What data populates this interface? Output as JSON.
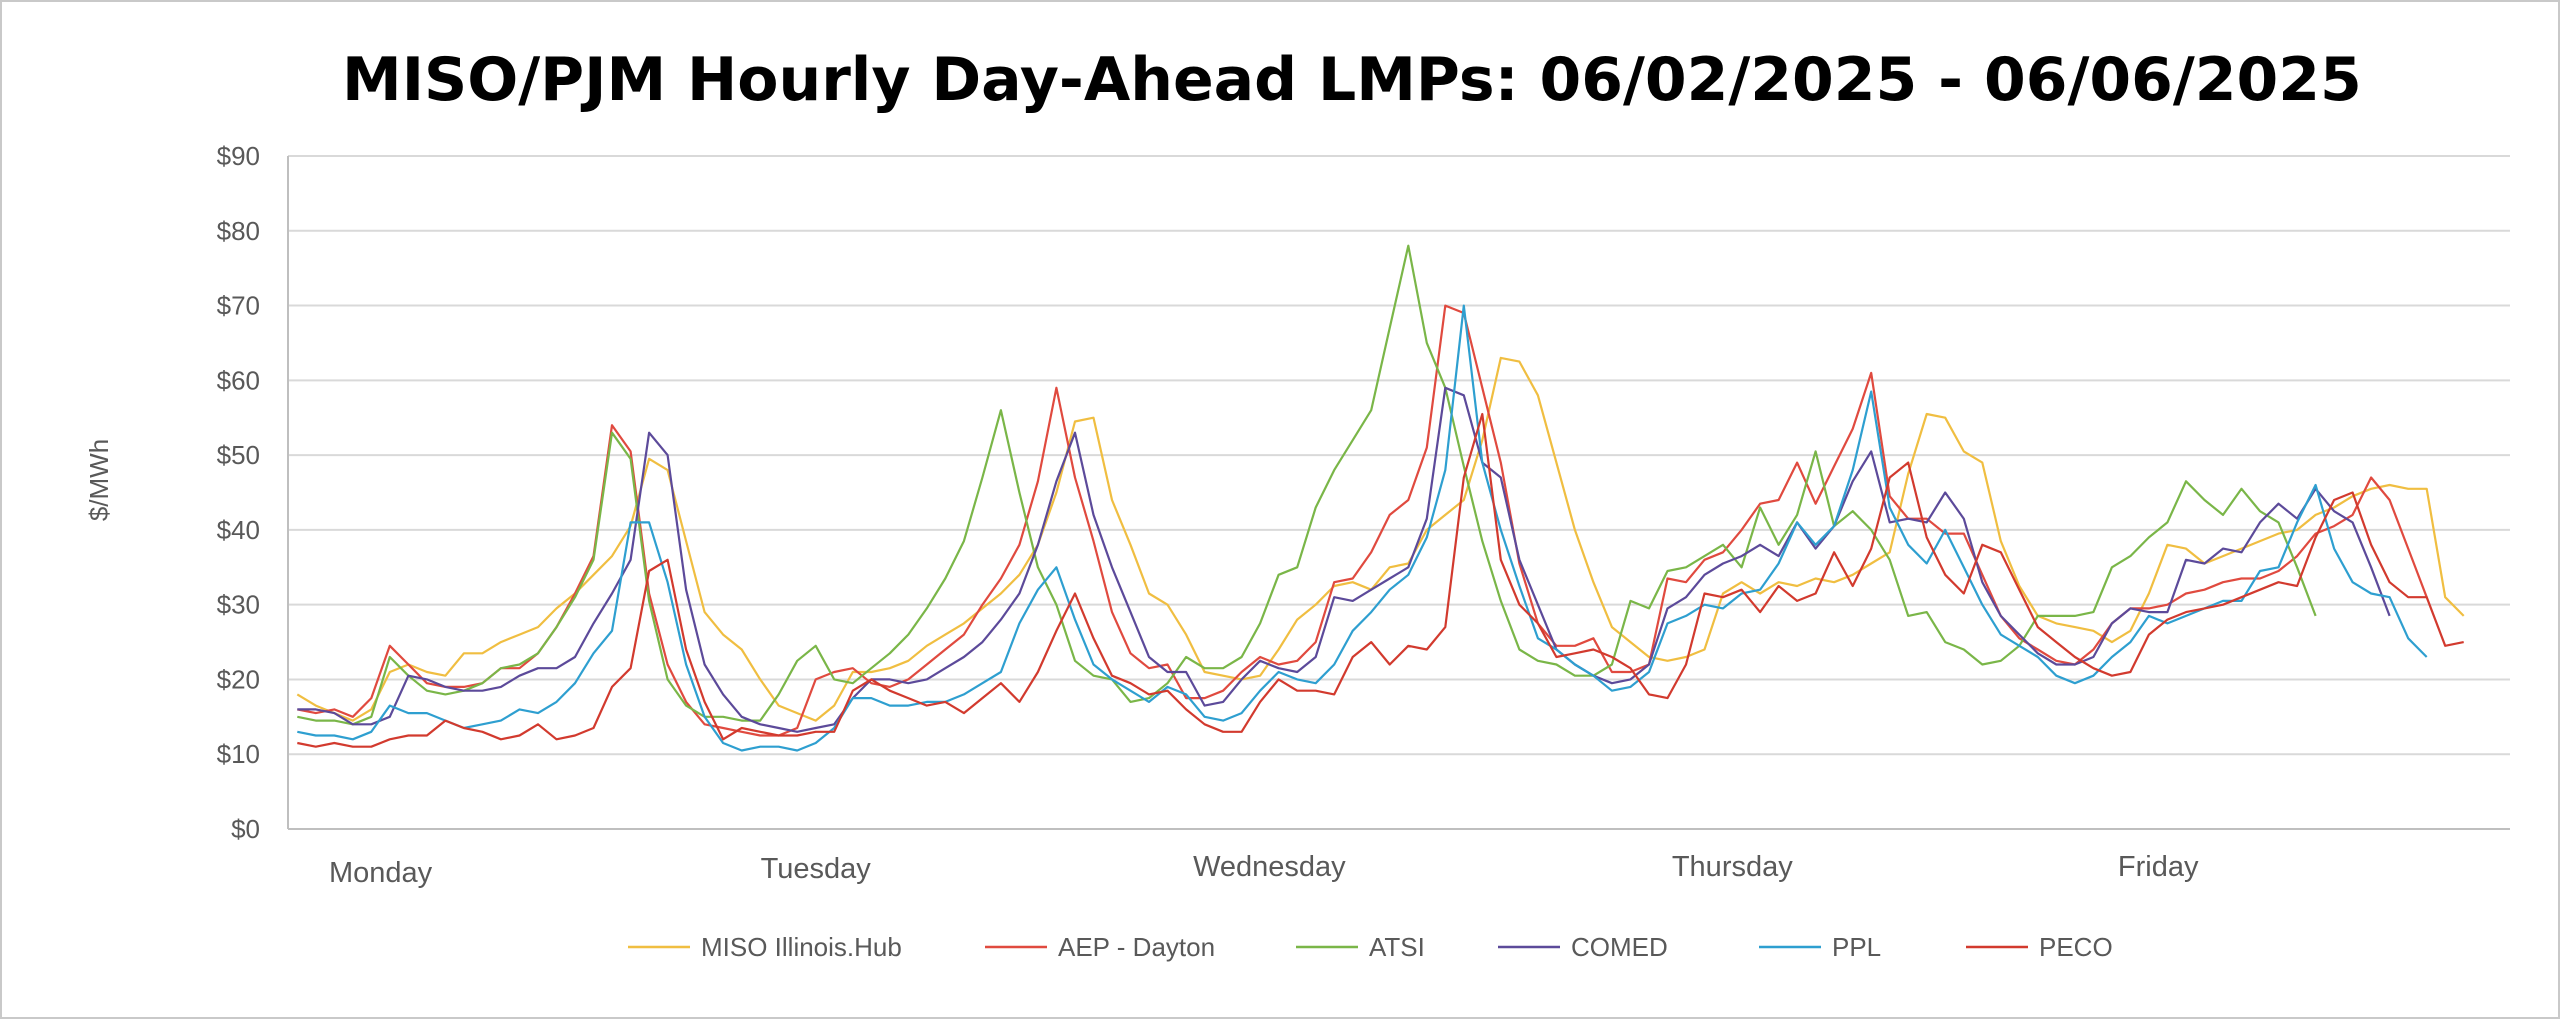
{
  "chart_data": {
    "type": "line",
    "title": "MISO/PJM Hourly Day-Ahead LMPs: 06/02/2025 - 06/06/2025",
    "xlabel": "",
    "ylabel": "$/MWh",
    "ylim": [
      0,
      90
    ],
    "yticks": [
      0,
      10,
      20,
      30,
      40,
      50,
      60,
      70,
      80,
      90
    ],
    "ytick_labels": [
      "$0",
      "$10",
      "$20",
      "$30",
      "$40",
      "$50",
      "$60",
      "$70",
      "$80",
      "$90"
    ],
    "grid": true,
    "legend_position": "bottom",
    "x_hours": 120,
    "day_labels": [
      {
        "label": "Monday",
        "hour": 4.5
      },
      {
        "label": "Tuesday",
        "hour": 28
      },
      {
        "label": "Wednesday",
        "hour": 52.5
      },
      {
        "label": "Thursday",
        "hour": 77.5
      },
      {
        "label": "Friday",
        "hour": 100.5
      }
    ],
    "series": [
      {
        "name": "MISO Illinois.Hub",
        "color": "#F0BE41",
        "values": [
          18,
          16.5,
          15.5,
          14.5,
          16,
          21,
          22,
          21,
          20.5,
          23.5,
          23.5,
          25,
          26,
          27,
          29.5,
          31.5,
          34,
          36.5,
          40.5,
          49.5,
          48,
          38.5,
          29,
          26,
          24,
          20,
          16.5,
          15.5,
          14.5,
          16.5,
          21,
          21,
          21.5,
          22.5,
          24.5,
          26,
          27.5,
          29.5,
          31.5,
          34,
          38,
          45,
          54.5,
          55,
          44,
          38,
          31.5,
          30,
          26,
          21,
          20.5,
          20,
          20.5,
          24,
          28,
          30,
          32.5,
          33,
          32,
          35,
          35.5,
          40,
          42,
          44,
          52,
          63,
          62.5,
          58,
          49,
          40,
          33,
          27,
          25,
          23,
          22.5,
          23,
          24,
          31.5,
          33,
          31.5,
          33,
          32.5,
          33.5,
          33,
          34,
          35.5,
          37,
          47.5,
          55.5,
          55,
          50.5,
          49,
          38.5,
          32.5,
          28.5,
          27.5,
          27,
          26.5,
          25,
          26.5,
          31.5,
          38,
          37.5,
          35.5,
          36.5,
          37.5,
          38.5,
          39.5,
          40,
          42,
          43,
          44.5,
          45.5,
          46,
          45.5,
          45.5,
          31,
          28.5
        ]
      },
      {
        "name": "AEP - Dayton",
        "color": "#E04A3F",
        "values": [
          16,
          15.5,
          16,
          15,
          17.5,
          24.5,
          22,
          19.5,
          19,
          19,
          19.5,
          21.5,
          21.5,
          23.5,
          27,
          31.5,
          36.5,
          54,
          50.5,
          31.5,
          22,
          17,
          14,
          13.5,
          13,
          12.5,
          12.5,
          13.5,
          20,
          21,
          21.5,
          19.5,
          19,
          20,
          22,
          24,
          26,
          30,
          33.5,
          38,
          46.5,
          59,
          47,
          38.5,
          29,
          23.5,
          21.5,
          22,
          17.5,
          17.5,
          18.5,
          21,
          23,
          22,
          22.5,
          25,
          33,
          33.5,
          37,
          42,
          44,
          51,
          70,
          69,
          59,
          49,
          35.5,
          27.5,
          24.5,
          24.5,
          25.5,
          21,
          21,
          22,
          33.5,
          33,
          36,
          37,
          40,
          43.5,
          44,
          49,
          43.5,
          48.5,
          53.5,
          61,
          44.5,
          41.5,
          41.5,
          39.5,
          39.5,
          34,
          28.5,
          25.5,
          24,
          22.5,
          22,
          24,
          27.5,
          29.5,
          29.5,
          30,
          31.5,
          32,
          33,
          33.5,
          33.5,
          34.5,
          36.5,
          39.5,
          40.5,
          42,
          47,
          44,
          37.5,
          31
        ]
      },
      {
        "name": "ATSI",
        "color": "#7AB648",
        "values": [
          15,
          14.5,
          14.5,
          14,
          15,
          23,
          20.5,
          18.5,
          18,
          18.5,
          19.5,
          21.5,
          22,
          23.5,
          27,
          31,
          36,
          53,
          49.5,
          30.5,
          20,
          16.5,
          15,
          15,
          14.5,
          14.5,
          18,
          22.5,
          24.5,
          20,
          19.5,
          21.5,
          23.5,
          26,
          29.5,
          33.5,
          38.5,
          47,
          56,
          45,
          35,
          30,
          22.5,
          20.5,
          20,
          17,
          17.5,
          19.5,
          23,
          21.5,
          21.5,
          23,
          27.5,
          34,
          35,
          43,
          48,
          52,
          56,
          67,
          78,
          65,
          59,
          48.5,
          38.5,
          30.5,
          24,
          22.5,
          22,
          20.5,
          20.5,
          22,
          30.5,
          29.5,
          34.5,
          35,
          36.5,
          38,
          35,
          43,
          38,
          42,
          50.5,
          40.5,
          42.5,
          40,
          36,
          28.5,
          29,
          25,
          24,
          22,
          22.5,
          24.5,
          28.5,
          28.5,
          28.5,
          29,
          35,
          36.5,
          39,
          41,
          46.5,
          44,
          42,
          45.5,
          42.5,
          41,
          35,
          28.5
        ]
      },
      {
        "name": "COMED",
        "color": "#5C4A9A",
        "values": [
          16,
          16,
          15.5,
          14,
          14,
          15,
          20.5,
          20,
          19,
          18.5,
          18.5,
          19,
          20.5,
          21.5,
          21.5,
          23,
          27.5,
          31.5,
          36,
          53,
          50,
          32,
          22,
          18,
          15,
          14,
          13.5,
          13,
          13.5,
          14,
          17.5,
          20,
          20,
          19.5,
          20,
          21.5,
          23,
          25,
          28,
          31.5,
          38,
          46.5,
          53,
          42,
          35,
          29,
          23,
          21,
          21,
          16.5,
          17,
          20,
          22.5,
          21.5,
          21,
          23,
          31,
          30.5,
          32,
          33.5,
          35,
          41.5,
          59,
          58,
          49,
          47,
          36,
          30,
          24,
          22,
          20.5,
          19.5,
          20,
          22,
          29.5,
          31,
          34,
          35.5,
          36.5,
          38,
          36.5,
          41,
          37.5,
          40.5,
          46.5,
          50.5,
          41,
          41.5,
          41,
          45,
          41.5,
          33,
          28.5,
          26,
          23.5,
          22,
          22,
          23,
          27.5,
          29.5,
          29,
          29,
          36,
          35.5,
          37.5,
          37,
          41,
          43.5,
          41.5,
          45.5,
          42.5,
          41,
          35,
          28.5
        ]
      },
      {
        "name": "PPL",
        "color": "#2E9FD0",
        "values": [
          13,
          12.5,
          12.5,
          12,
          13,
          16.5,
          15.5,
          15.5,
          14.5,
          13.5,
          14,
          14.5,
          16,
          15.5,
          17,
          19.5,
          23.5,
          26.5,
          41,
          41,
          33,
          22,
          15,
          11.5,
          10.5,
          11,
          11,
          10.5,
          11.5,
          13.5,
          17.5,
          17.5,
          16.5,
          16.5,
          17,
          17,
          18,
          19.5,
          21,
          27.5,
          32,
          35,
          28,
          22,
          20,
          18.5,
          17,
          19,
          18,
          15,
          14.5,
          15.5,
          18.5,
          21,
          20,
          19.5,
          22,
          26.5,
          29,
          32,
          34,
          39,
          48,
          70,
          49,
          40,
          32.5,
          25.5,
          24,
          22,
          20.5,
          18.5,
          19,
          21,
          27.5,
          28.5,
          30,
          29.5,
          31.5,
          32,
          35.5,
          41,
          38,
          40.5,
          48,
          58.5,
          43,
          38,
          35.5,
          40,
          35,
          30,
          26,
          24.5,
          23,
          20.5,
          19.5,
          20.5,
          23,
          25,
          28.5,
          27.5,
          28.5,
          29.5,
          30.5,
          30.5,
          34.5,
          35,
          41,
          46,
          37.5,
          33,
          31.5,
          31,
          25.5,
          23
        ]
      },
      {
        "name": "PECO",
        "color": "#D23A2E",
        "values": [
          11.5,
          11,
          11.5,
          11,
          11,
          12,
          12.5,
          12.5,
          14.5,
          13.5,
          13,
          12,
          12.5,
          14,
          12,
          12.5,
          13.5,
          19,
          21.5,
          34.5,
          36,
          24,
          17,
          12,
          13.5,
          13,
          12.5,
          12.5,
          13,
          13,
          18.5,
          20,
          18.5,
          17.5,
          16.5,
          17,
          15.5,
          17.5,
          19.5,
          17,
          21,
          26.5,
          31.5,
          25.5,
          20.5,
          19.5,
          18,
          18.5,
          16,
          14,
          13,
          13,
          17,
          20,
          18.5,
          18.5,
          18,
          23,
          25,
          22,
          24.5,
          24,
          27,
          47,
          55.5,
          36,
          30,
          27.5,
          23,
          23.5,
          24,
          23,
          21.5,
          18,
          17.5,
          22,
          31.5,
          31,
          32,
          29,
          32.5,
          30.5,
          31.5,
          37,
          32.5,
          37.5,
          47,
          49,
          39,
          34,
          31.5,
          38,
          37,
          32,
          27,
          25,
          23,
          21.5,
          20.5,
          21,
          26,
          28,
          29,
          29.5,
          30,
          31,
          32,
          33,
          32.5,
          39,
          44,
          45,
          38,
          33,
          31,
          31,
          24.5,
          25
        ]
      }
    ]
  }
}
